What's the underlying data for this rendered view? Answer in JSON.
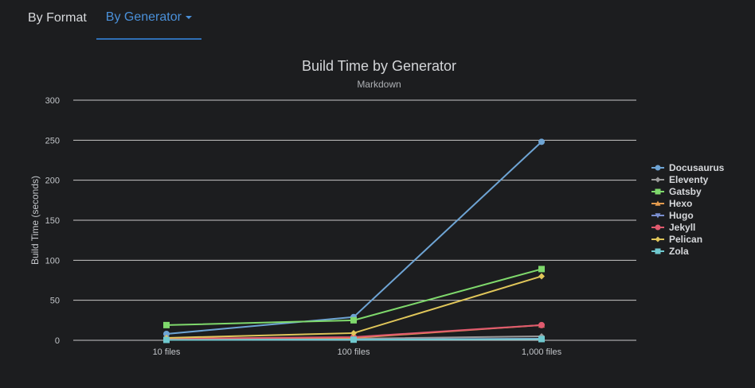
{
  "tabs": [
    {
      "label": "By Format",
      "active": false
    },
    {
      "label": "By Generator",
      "active": true,
      "dropdown": true
    }
  ],
  "chart_data": {
    "type": "line",
    "title": "Build Time by Generator",
    "subtitle": "Markdown",
    "ylabel": "Build Time (seconds)",
    "xlabel": "",
    "categories": [
      "10 files",
      "100 files",
      "1,000 files"
    ],
    "ylim": [
      0,
      300
    ],
    "yticks": [
      0,
      50,
      100,
      150,
      200,
      250,
      300
    ],
    "grid": true,
    "legend": "right",
    "series": [
      {
        "name": "Docusaurus",
        "color": "#6ea4d4",
        "marker": "circle",
        "values": [
          8,
          29,
          248
        ]
      },
      {
        "name": "Eleventy",
        "color": "#9a9a9a",
        "marker": "diamond",
        "values": [
          1,
          2,
          5
        ]
      },
      {
        "name": "Gatsby",
        "color": "#7fd96c",
        "marker": "square",
        "values": [
          19,
          25,
          89
        ]
      },
      {
        "name": "Hexo",
        "color": "#e39b4e",
        "marker": "triangle",
        "values": [
          2,
          3,
          19
        ]
      },
      {
        "name": "Hugo",
        "color": "#7a8fd0",
        "marker": "triangle-down",
        "values": [
          0.5,
          1,
          2
        ]
      },
      {
        "name": "Jekyll",
        "color": "#e05a6e",
        "marker": "circle",
        "values": [
          2,
          4,
          19
        ]
      },
      {
        "name": "Pelican",
        "color": "#e0c65a",
        "marker": "diamond",
        "values": [
          3,
          9,
          80
        ]
      },
      {
        "name": "Zola",
        "color": "#6fc9cf",
        "marker": "square",
        "values": [
          0.5,
          0.8,
          1.5
        ]
      }
    ]
  }
}
